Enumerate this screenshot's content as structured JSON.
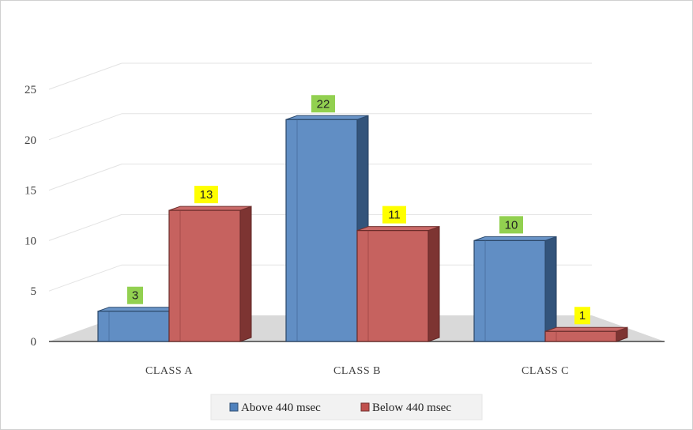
{
  "chart_data": {
    "type": "bar",
    "style": "3d-clustered-column",
    "categories": [
      "CLASS A",
      "CLASS B",
      "CLASS C"
    ],
    "series": [
      {
        "name": "Above 440 msec",
        "values": [
          3,
          22,
          10
        ],
        "color": "#4f81bd",
        "label_bg": "#92d050"
      },
      {
        "name": "Below 440 msec",
        "values": [
          13,
          11,
          1
        ],
        "color": "#c0504d",
        "label_bg": "#ffff00"
      }
    ],
    "ylim": [
      0,
      25
    ],
    "yticks": [
      0,
      5,
      10,
      15,
      20,
      25
    ],
    "title": "",
    "xlabel": "",
    "ylabel": "",
    "grid": true,
    "legend_position": "bottom"
  }
}
